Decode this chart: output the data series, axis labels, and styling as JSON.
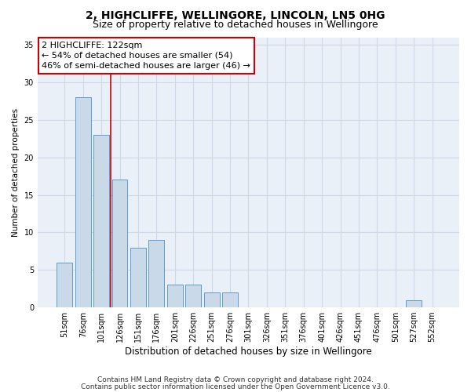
{
  "title1": "2, HIGHCLIFFE, WELLINGORE, LINCOLN, LN5 0HG",
  "title2": "Size of property relative to detached houses in Wellingore",
  "xlabel": "Distribution of detached houses by size in Wellingore",
  "ylabel": "Number of detached properties",
  "categories": [
    "51sqm",
    "76sqm",
    "101sqm",
    "126sqm",
    "151sqm",
    "176sqm",
    "201sqm",
    "226sqm",
    "251sqm",
    "276sqm",
    "301sqm",
    "326sqm",
    "351sqm",
    "376sqm",
    "401sqm",
    "426sqm",
    "451sqm",
    "476sqm",
    "501sqm",
    "527sqm",
    "552sqm"
  ],
  "bar_values": [
    6,
    28,
    23,
    17,
    8,
    9,
    3,
    3,
    2,
    2,
    0,
    0,
    0,
    0,
    0,
    0,
    0,
    0,
    0,
    1,
    0
  ],
  "bar_color": "#c9d9e8",
  "bar_edgecolor": "#5b9bd5",
  "red_line_index": 2.5,
  "red_line_color": "#cc0000",
  "annotation_line1": "2 HIGHCLIFFE: 122sqm",
  "annotation_line2": "← 54% of detached houses are smaller (54)",
  "annotation_line3": "46% of semi-detached houses are larger (46) →",
  "annotation_box_edgecolor": "#cc0000",
  "annotation_box_facecolor": "#ffffff",
  "ylim": [
    0,
    36
  ],
  "yticks": [
    0,
    5,
    10,
    15,
    20,
    25,
    30,
    35
  ],
  "grid_color": "#d0d8e8",
  "bg_color": "#eaf0f8",
  "footer1": "Contains HM Land Registry data © Crown copyright and database right 2024.",
  "footer2": "Contains public sector information licensed under the Open Government Licence v3.0.",
  "title1_fontsize": 10,
  "title2_fontsize": 9,
  "xlabel_fontsize": 8.5,
  "ylabel_fontsize": 7.5,
  "tick_fontsize": 7,
  "annotation_fontsize": 8,
  "footer_fontsize": 6.5
}
